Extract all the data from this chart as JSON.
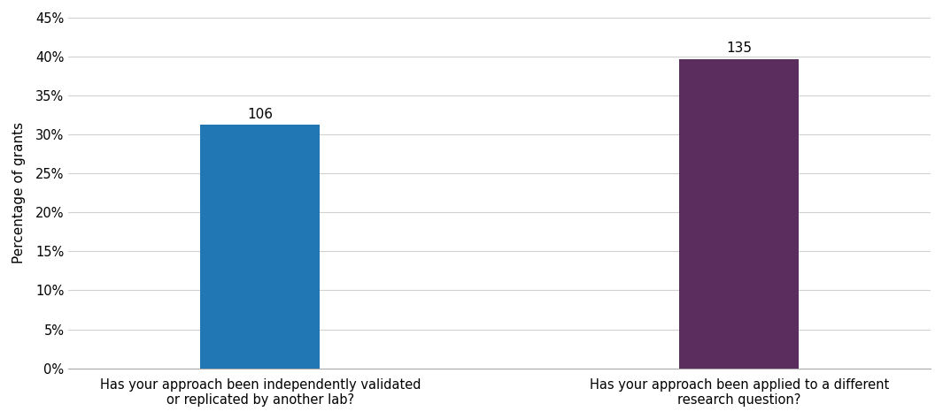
{
  "categories": [
    "Has your approach been independently validated\nor replicated by another lab?",
    "Has your approach been applied to a different\nresearch question?"
  ],
  "values": [
    0.3125,
    0.3971
  ],
  "labels": [
    106,
    135
  ],
  "bar_colors": [
    "#2077b4",
    "#5b2c5e"
  ],
  "ylabel": "Percentage of grants",
  "ylim": [
    0,
    0.45
  ],
  "yticks": [
    0.0,
    0.05,
    0.1,
    0.15,
    0.2,
    0.25,
    0.3,
    0.35,
    0.4,
    0.45
  ],
  "ytick_labels": [
    "0%",
    "5%",
    "10%",
    "15%",
    "20%",
    "25%",
    "30%",
    "35%",
    "40%",
    "45%"
  ],
  "background_color": "#ffffff",
  "grid_color": "#d0d0d0",
  "bar_width": 0.25,
  "label_fontsize": 11,
  "tick_fontsize": 10.5,
  "ylabel_fontsize": 11
}
